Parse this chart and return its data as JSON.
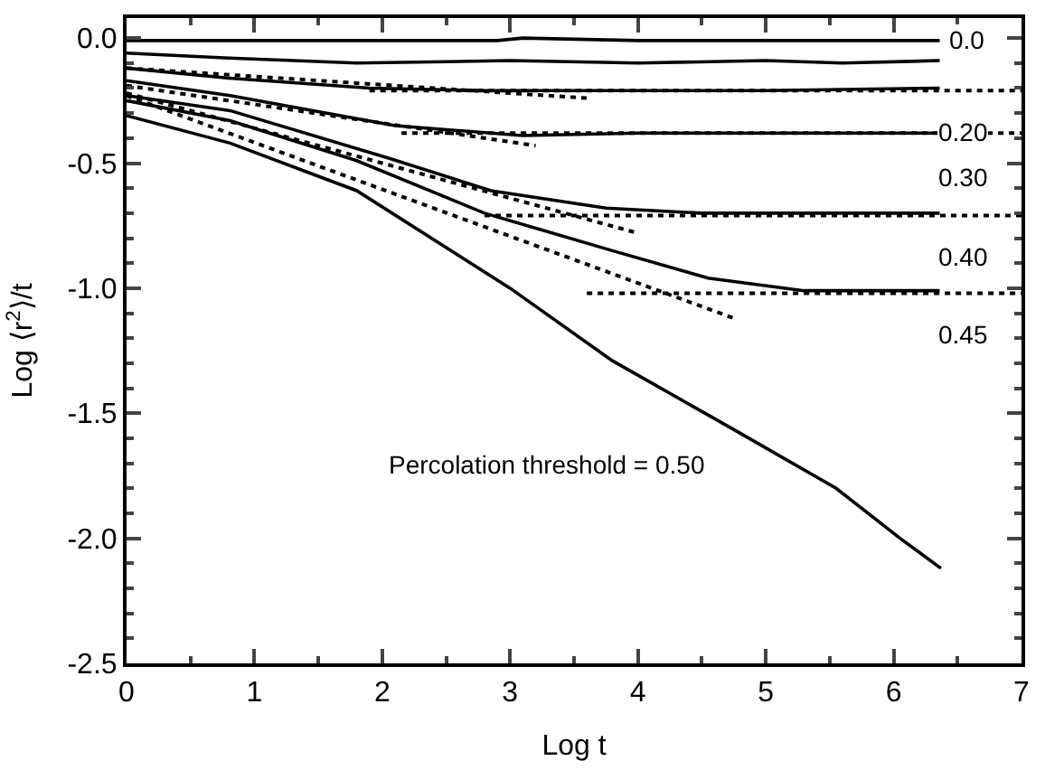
{
  "chart_data": {
    "type": "line",
    "xlabel": "Log t",
    "ylabel": "Log ⟨r$^{2}$⟩/t",
    "xlim": [
      0,
      7
    ],
    "ylim": [
      -2.5,
      0.08
    ],
    "xticks": [
      0,
      {
        "value": 0.5,
        "label": null
      },
      1,
      {
        "value": 1.5,
        "label": null
      },
      2,
      {
        "value": 2.5,
        "label": null
      },
      3,
      {
        "value": 3.5,
        "label": null
      },
      4,
      {
        "value": 4.5,
        "label": null
      },
      5,
      {
        "value": 5.5,
        "label": null
      },
      6,
      {
        "value": 6.5,
        "label": null
      },
      7
    ],
    "yticks": [
      {
        "value": -2.5,
        "label": "-2.5"
      },
      {
        "value": -2.4,
        "label": null
      },
      {
        "value": -2.3,
        "label": null
      },
      {
        "value": -2.2,
        "label": null
      },
      {
        "value": -2.1,
        "label": null
      },
      {
        "value": -2.0,
        "label": "-2.0"
      },
      {
        "value": -1.9,
        "label": null
      },
      {
        "value": -1.8,
        "label": null
      },
      {
        "value": -1.7,
        "label": null
      },
      {
        "value": -1.6,
        "label": null
      },
      {
        "value": -1.5,
        "label": "-1.5"
      },
      {
        "value": -1.4,
        "label": null
      },
      {
        "value": -1.3,
        "label": null
      },
      {
        "value": -1.2,
        "label": null
      },
      {
        "value": -1.1,
        "label": null
      },
      {
        "value": -1.0,
        "label": "-1.0"
      },
      {
        "value": -0.9,
        "label": null
      },
      {
        "value": -0.8,
        "label": null
      },
      {
        "value": -0.7,
        "label": null
      },
      {
        "value": -0.6,
        "label": null
      },
      {
        "value": -0.5,
        "label": "-0.5"
      },
      {
        "value": -0.4,
        "label": null
      },
      {
        "value": -0.3,
        "label": null
      },
      {
        "value": -0.2,
        "label": null
      },
      {
        "value": -0.1,
        "label": null
      },
      {
        "value": 0.0,
        "label": "0.0"
      }
    ],
    "marker": "none",
    "series": [
      {
        "name": "0.0",
        "color": "#000000",
        "line_style": "solid",
        "x": [
          0,
          1,
          2,
          2.9,
          3.1,
          4,
          5,
          6,
          6.36
        ],
        "values": [
          -0.01,
          -0.01,
          -0.01,
          -0.01,
          0.0,
          -0.01,
          -0.01,
          -0.01,
          -0.01
        ]
      },
      {
        "color": "#000000",
        "line_style": "solid",
        "x": [
          0,
          0.8,
          1.8,
          3,
          4,
          5,
          5.6,
          6.36
        ],
        "values": [
          -0.06,
          -0.08,
          -0.1,
          -0.09,
          -0.1,
          -0.09,
          -0.1,
          -0.09
        ]
      },
      {
        "name": "0.20",
        "color": "#000000",
        "line_style": "solid",
        "x": [
          0,
          0.8,
          1.9,
          2.8,
          4,
          5,
          6.36
        ],
        "values": [
          -0.12,
          -0.16,
          -0.2,
          -0.21,
          -0.21,
          -0.21,
          -0.2
        ]
      },
      {
        "name": "0.30",
        "color": "#000000",
        "line_style": "solid",
        "x": [
          0,
          0.81,
          2.1,
          3.1,
          4,
          5,
          6.36
        ],
        "values": [
          -0.17,
          -0.23,
          -0.35,
          -0.39,
          -0.38,
          -0.38,
          -0.38
        ]
      },
      {
        "name": "0.40",
        "color": "#000000",
        "line_style": "solid",
        "x": [
          0,
          0.81,
          2.05,
          2.85,
          3.75,
          4.5,
          5.5,
          6.36
        ],
        "values": [
          -0.23,
          -0.29,
          -0.48,
          -0.61,
          -0.68,
          -0.7,
          -0.7,
          -0.7
        ]
      },
      {
        "name": "0.45",
        "color": "#000000",
        "line_style": "solid",
        "x": [
          0,
          0.81,
          1.8,
          2.8,
          3.8,
          4.55,
          5.3,
          6.36
        ],
        "values": [
          -0.25,
          -0.33,
          -0.49,
          -0.7,
          -0.85,
          -0.96,
          -1.01,
          -1.01
        ]
      },
      {
        "color": "#000000",
        "line_style": "solid",
        "x": [
          0,
          0.81,
          1.8,
          3.0,
          3.8,
          4.8,
          5.55,
          6.05,
          6.37
        ],
        "values": [
          -0.31,
          -0.42,
          -0.61,
          -1.0,
          -1.29,
          -1.58,
          -1.8,
          -2.0,
          -2.12
        ]
      },
      {
        "color": "#000000",
        "line_style": "dotted",
        "x": [
          1.9,
          7
        ],
        "values": [
          -0.21,
          -0.21
        ]
      },
      {
        "color": "#000000",
        "line_style": "dotted",
        "x": [
          0,
          3.6
        ],
        "values": [
          -0.12,
          -0.24
        ]
      },
      {
        "color": "#000000",
        "line_style": "dotted",
        "x": [
          2.15,
          7
        ],
        "values": [
          -0.38,
          -0.38
        ]
      },
      {
        "color": "#000000",
        "line_style": "dotted",
        "x": [
          0,
          3.2
        ],
        "values": [
          -0.19,
          -0.43
        ]
      },
      {
        "color": "#000000",
        "line_style": "dotted",
        "x": [
          2.8,
          7
        ],
        "values": [
          -0.71,
          -0.71
        ]
      },
      {
        "color": "#000000",
        "line_style": "dotted",
        "x": [
          0,
          4.0
        ],
        "values": [
          -0.22,
          -0.78
        ]
      },
      {
        "color": "#000000",
        "line_style": "dotted",
        "x": [
          3.6,
          7
        ],
        "values": [
          -1.02,
          -1.02
        ]
      },
      {
        "color": "#000000",
        "line_style": "dotted",
        "x": [
          0,
          4.75
        ],
        "values": [
          -0.23,
          -1.12
        ]
      }
    ],
    "annotations": [
      "Percolation threshold = 0.50"
    ]
  }
}
